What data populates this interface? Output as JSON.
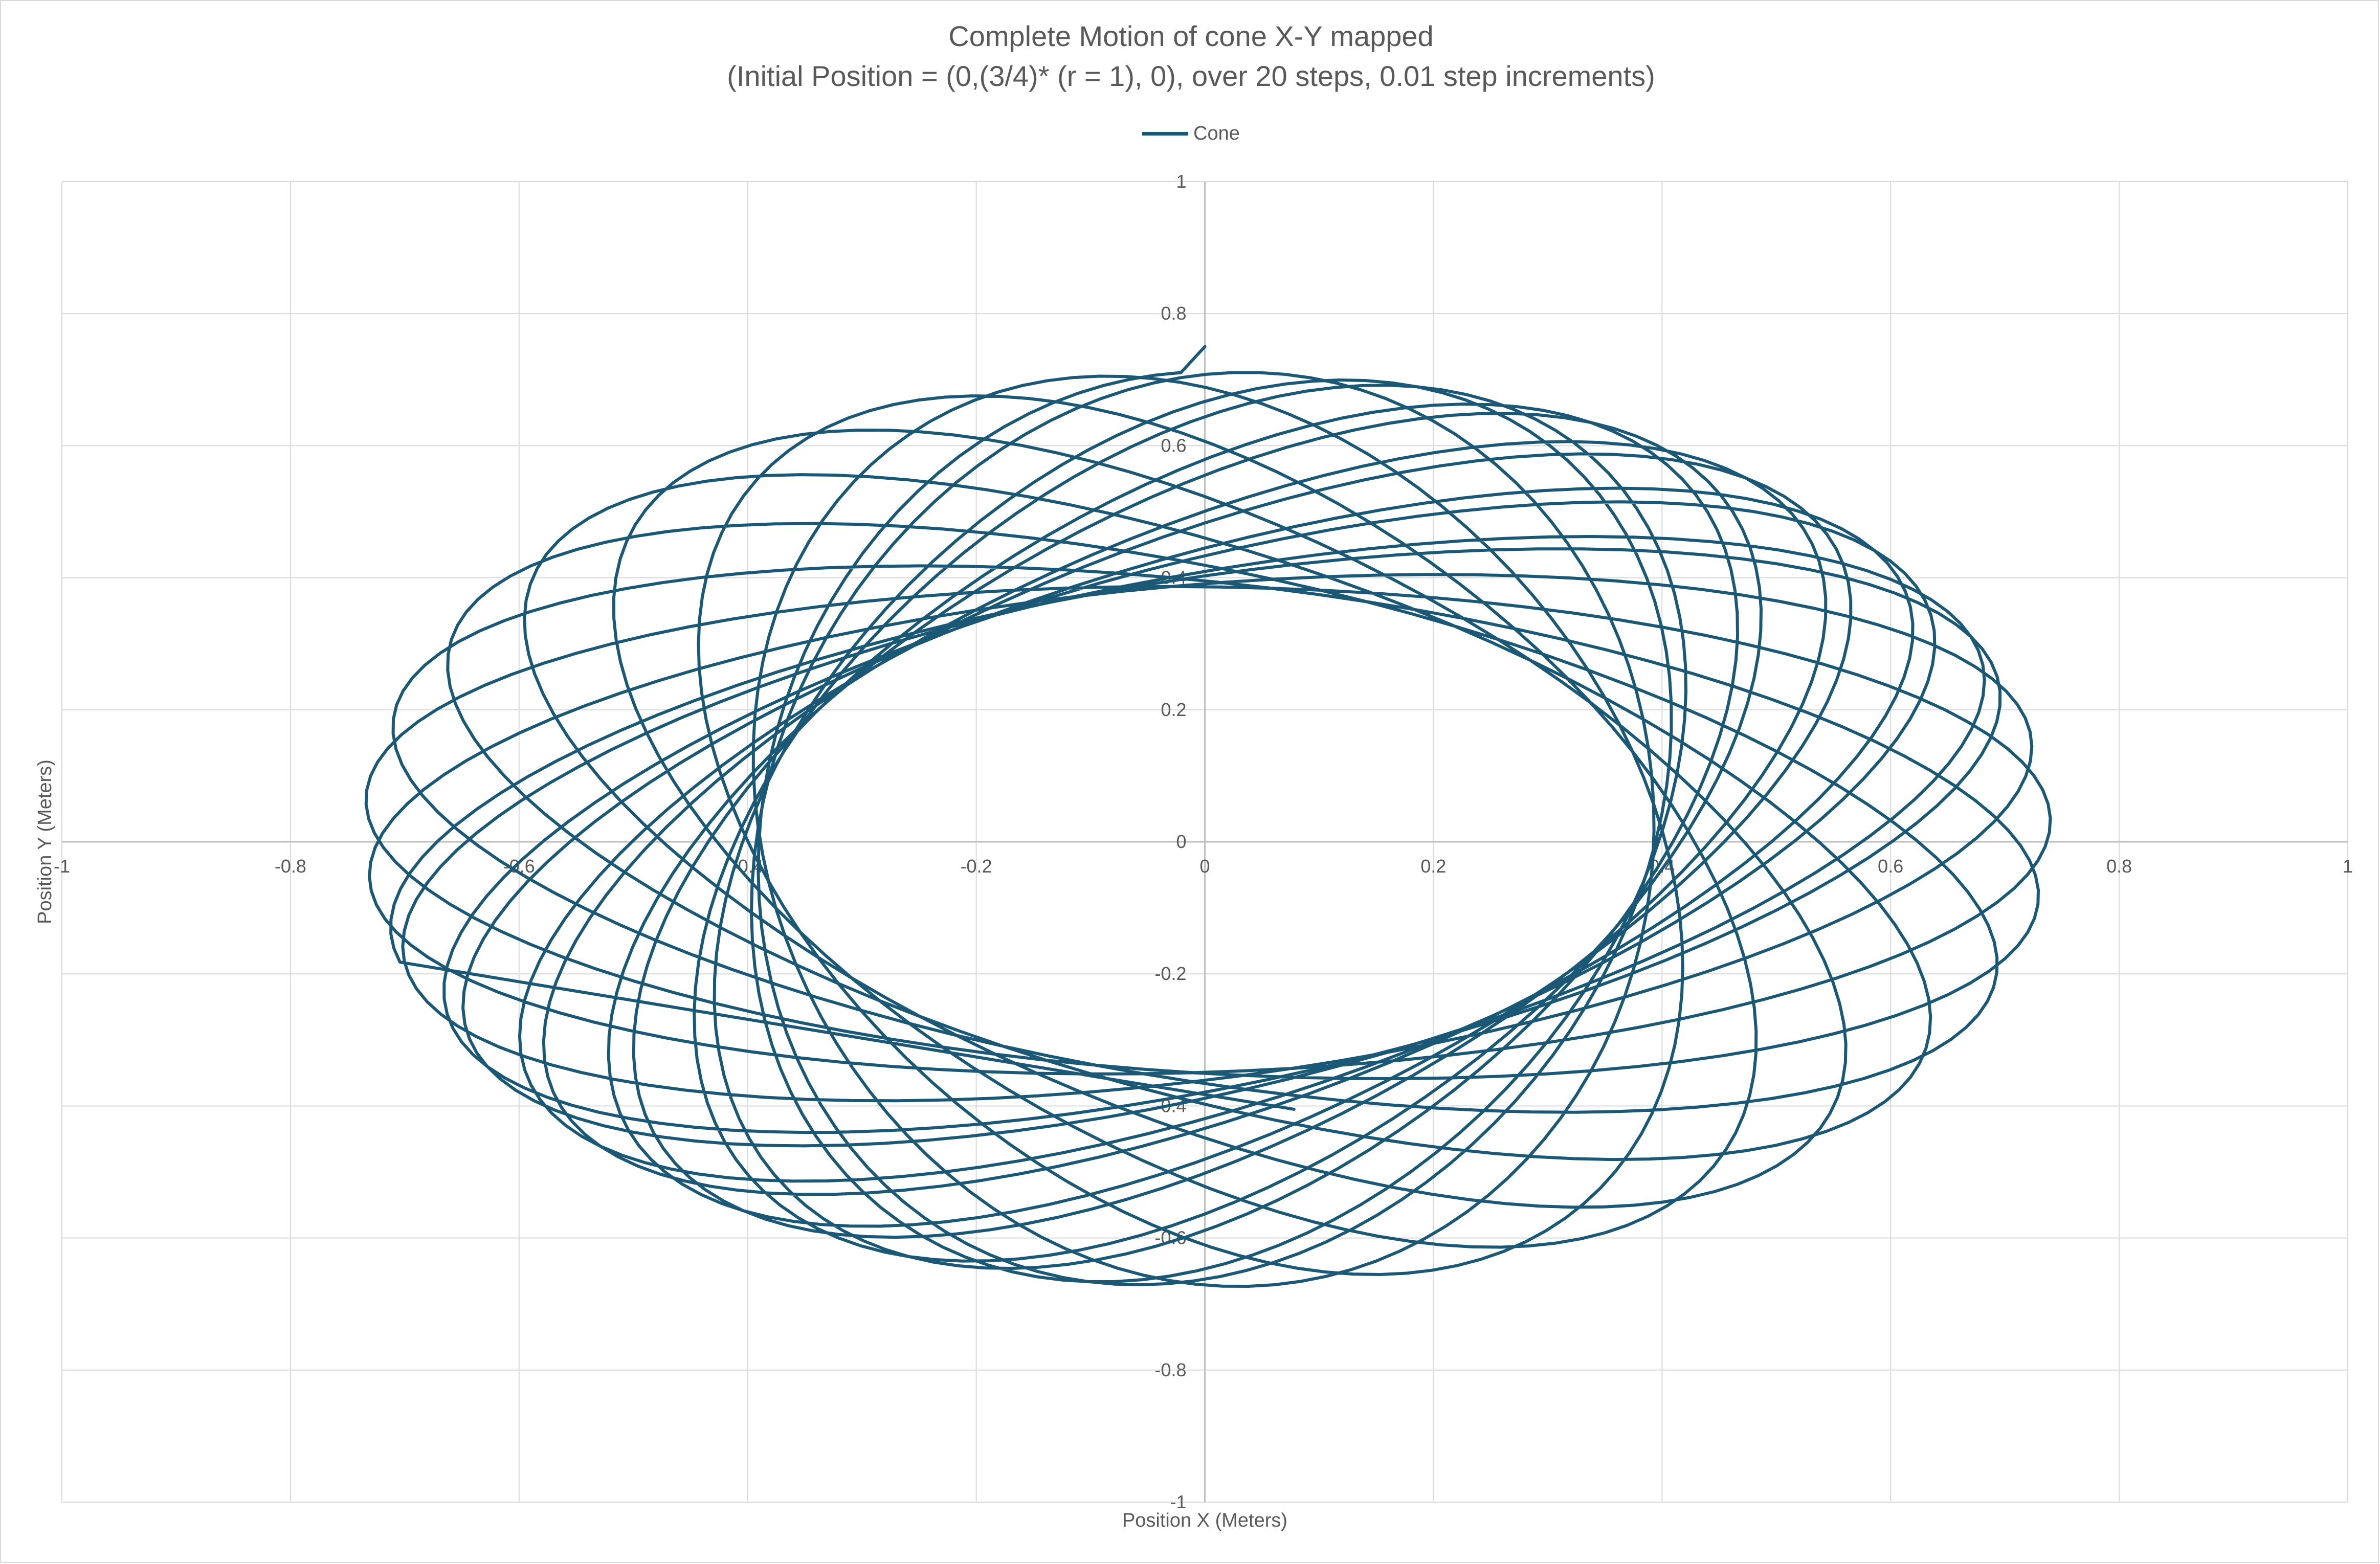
{
  "chart_data": {
    "type": "line",
    "title": "Complete Motion of cone X-Y mapped",
    "subtitle": "(Initial Position = (0,(3/4)* (r = 1), 0), over 20 steps, 0.01 step increments)",
    "xlabel": "Position X (Meters)",
    "ylabel": "Position Y (Meters)",
    "xlim": [
      -1,
      1
    ],
    "ylim": [
      -1,
      1
    ],
    "xticks": [
      "-1",
      "-0.8",
      "-0.6",
      "-0.4",
      "-0.2",
      "0",
      "0.2",
      "0.4",
      "0.6",
      "0.8",
      "1"
    ],
    "yticks": [
      "1",
      "0.8",
      "0.6",
      "0.4",
      "0.2",
      "0",
      "-0.2",
      "-0.4",
      "-0.6",
      "-0.8",
      "-1"
    ],
    "grid": true,
    "legend_position": "top-center",
    "series": [
      {
        "name": "Cone",
        "color": "#1b5876",
        "model": "rotating ellipse (rosette)",
        "start": [
          0,
          0.75
        ],
        "end": [
          0.078,
          -0.405
        ],
        "steps": 20,
        "step_increment": 0.01,
        "params": {
          "semi_major": 0.738,
          "semi_minor": 0.391,
          "cx": 0.002,
          "cy": 0.019,
          "tilt_initial_rad": 1.5708,
          "tilt_rate_rad_per_step": -0.2209,
          "orbit_phase_rate_rad_per_step": 6.2832,
          "vertical_squash": 0.939
        }
      }
    ]
  }
}
